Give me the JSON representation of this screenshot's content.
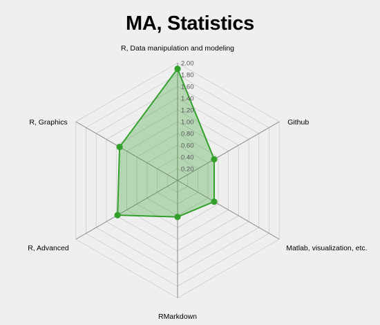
{
  "chart_data": {
    "type": "radar",
    "title": "MA, Statistics",
    "axes": [
      "R, Data manipulation and modeling",
      "Github",
      "Matlab, visualization, etc.",
      "RMarkdown",
      "R, Advanced",
      "R, Graphics"
    ],
    "series": [
      {
        "values": [
          1.9,
          0.72,
          0.72,
          0.62,
          1.18,
          1.14
        ]
      }
    ],
    "rmax": 2.0,
    "ticks": [
      "0.20",
      "0.40",
      "0.60",
      "0.80",
      "1.00",
      "1.20",
      "1.40",
      "1.60",
      "1.80",
      "2.00"
    ],
    "grid": true,
    "colors": {
      "background": "#efefef",
      "grid": "#cccccc",
      "axis": "#888888",
      "series_stroke": "#33a02c",
      "series_fill": "#33a02c"
    }
  }
}
